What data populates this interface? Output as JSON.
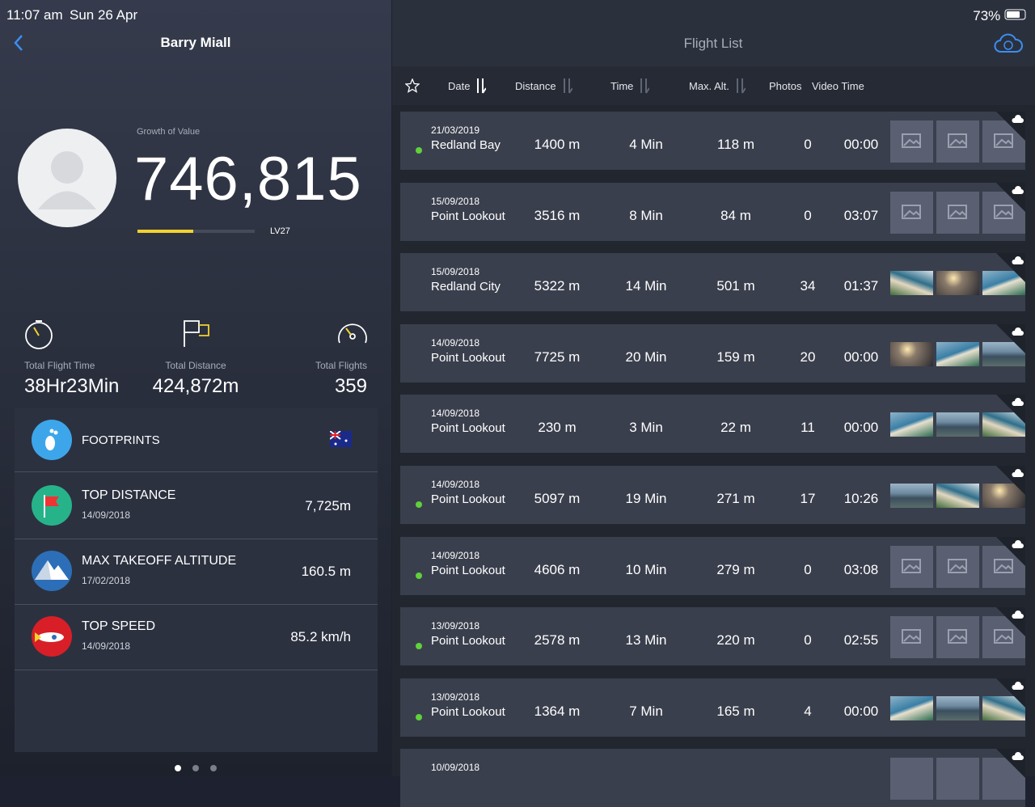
{
  "status_bar": {
    "time": "11:07 am",
    "date": "Sun 26 Apr",
    "battery": "73%"
  },
  "profile": {
    "name": "Barry Miall",
    "growth_label": "Growth of Value",
    "growth_value": "746,815",
    "level": "LV27"
  },
  "stats": [
    {
      "label": "Total Flight Time",
      "value": "38Hr23Min"
    },
    {
      "label": "Total Distance",
      "value": "424,872m"
    },
    {
      "label": "Total Flights",
      "value": "359"
    }
  ],
  "footprints": {
    "title": "FOOTPRINTS"
  },
  "records": [
    {
      "title": "TOP DISTANCE",
      "date": "14/09/2018",
      "value": "7,725m"
    },
    {
      "title": "MAX TAKEOFF ALTITUDE",
      "date": "17/02/2018",
      "value": "160.5 m"
    },
    {
      "title": "TOP SPEED",
      "date": "14/09/2018",
      "value": "85.2 km/h"
    }
  ],
  "flight_list": {
    "title": "Flight List",
    "columns": [
      "Date",
      "Distance",
      "Time",
      "Max. Alt.",
      "Photos",
      "Video Time"
    ],
    "rows": [
      {
        "date": "21/03/2019",
        "location": "Redland Bay",
        "distance": "1400 m",
        "time": "4 Min",
        "max_alt": "118 m",
        "photos": 0,
        "video_time": "00:00",
        "dot": true
      },
      {
        "date": "15/09/2018",
        "location": "Point Lookout",
        "distance": "3516 m",
        "time": "8 Min",
        "max_alt": "84 m",
        "photos": 0,
        "video_time": "03:07",
        "dot": false
      },
      {
        "date": "15/09/2018",
        "location": "Redland City",
        "distance": "5322 m",
        "time": "14 Min",
        "max_alt": "501 m",
        "photos": 34,
        "video_time": "01:37",
        "dot": false
      },
      {
        "date": "14/09/2018",
        "location": "Point Lookout",
        "distance": "7725 m",
        "time": "20 Min",
        "max_alt": "159 m",
        "photos": 20,
        "video_time": "00:00",
        "dot": false
      },
      {
        "date": "14/09/2018",
        "location": "Point Lookout",
        "distance": "230 m",
        "time": "3 Min",
        "max_alt": "22 m",
        "photos": 11,
        "video_time": "00:00",
        "dot": false
      },
      {
        "date": "14/09/2018",
        "location": "Point Lookout",
        "distance": "5097 m",
        "time": "19 Min",
        "max_alt": "271 m",
        "photos": 17,
        "video_time": "10:26",
        "dot": true
      },
      {
        "date": "14/09/2018",
        "location": "Point Lookout",
        "distance": "4606 m",
        "time": "10 Min",
        "max_alt": "279 m",
        "photos": 0,
        "video_time": "03:08",
        "dot": true
      },
      {
        "date": "13/09/2018",
        "location": "Point Lookout",
        "distance": "2578 m",
        "time": "13 Min",
        "max_alt": "220 m",
        "photos": 0,
        "video_time": "02:55",
        "dot": true
      },
      {
        "date": "13/09/2018",
        "location": "Point Lookout",
        "distance": "1364 m",
        "time": "7 Min",
        "max_alt": "165 m",
        "photos": 4,
        "video_time": "00:00",
        "dot": true
      },
      {
        "date": "10/09/2018"
      }
    ]
  }
}
